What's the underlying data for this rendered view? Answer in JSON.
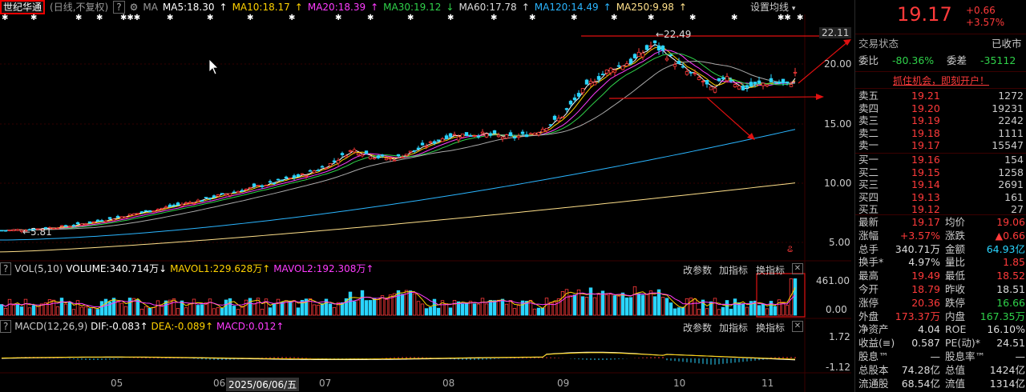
{
  "header": {
    "name": "世纪华通",
    "period": "(日线,不复权)",
    "help": "?",
    "ma_label": "MA",
    "ma5": "MA5:18.30",
    "ma10": "MA10:18.17",
    "ma20": "MA20:18.39",
    "ma30": "MA30:19.12",
    "ma60": "MA60:17.78",
    "ma120": "MA120:14.49",
    "ma250": "MA250:9.98",
    "settings": "设置均线",
    "colors": {
      "ma5": "#ffffff",
      "ma10": "#ffd200",
      "ma20": "#ff3cff",
      "ma30": "#2fd24a",
      "ma60": "#aaaaaa",
      "ma120": "#2ab5ff",
      "ma250": "#ffe08a"
    }
  },
  "price_axis": [
    "22.11",
    "20.00",
    "15.00",
    "10.00",
    "5.00"
  ],
  "annotations": {
    "high": "←22.49",
    "low": "←5.81"
  },
  "volume": {
    "title": "VOL(5,10)",
    "volume": "VOLUME:340.714万",
    "mavol1": "MAVOL1:229.628万",
    "mavol2": "MAVOL2:192.308万",
    "btn1": "改参数",
    "btn2": "加指标",
    "btn3": "换指标",
    "axis_top": "461.00",
    "axis_bottom": "0.00"
  },
  "macd": {
    "title": "MACD(12,26,9)",
    "dif": "DIF:-0.083",
    "dea": "DEA:-0.089",
    "macd": "MACD:0.012",
    "btn1": "改参数",
    "btn2": "加指标",
    "btn3": "换指标",
    "axis_top": "1.72",
    "axis_bottom": "-1.12"
  },
  "x_axis": [
    "05",
    "06",
    "2025/06/06/五",
    "07",
    "08",
    "09",
    "10",
    "11"
  ],
  "quote": {
    "price": "19.17",
    "change": "+0.66",
    "change_pct": "+3.57%",
    "status_label": "交易状态",
    "status_value": "已收市",
    "weibi_label": "委比",
    "weibi_value": "-80.36%",
    "weicha_label": "委差",
    "weicha_value": "-35112",
    "promo": "抓住机会，即刻开户！"
  },
  "asks": [
    {
      "label": "卖五",
      "price": "19.21",
      "vol": "1272"
    },
    {
      "label": "卖四",
      "price": "19.20",
      "vol": "19231"
    },
    {
      "label": "卖三",
      "price": "19.19",
      "vol": "2242"
    },
    {
      "label": "卖二",
      "price": "19.18",
      "vol": "1111"
    },
    {
      "label": "卖一",
      "price": "19.17",
      "vol": "15547"
    }
  ],
  "bids": [
    {
      "label": "买一",
      "price": "19.16",
      "vol": "154"
    },
    {
      "label": "买二",
      "price": "19.15",
      "vol": "1258"
    },
    {
      "label": "买三",
      "price": "19.14",
      "vol": "2691"
    },
    {
      "label": "买四",
      "price": "19.13",
      "vol": "161"
    },
    {
      "label": "买五",
      "price": "19.12",
      "vol": "27"
    }
  ],
  "stats": [
    {
      "l1": "最新",
      "v1": "19.17",
      "c1": "red",
      "l2": "均价",
      "v2": "19.06",
      "c2": "red"
    },
    {
      "l1": "涨幅",
      "v1": "+3.57%",
      "c1": "red",
      "l2": "涨跌",
      "v2": "▲0.66",
      "c2": "red"
    },
    {
      "l1": "总手",
      "v1": "340.71万",
      "c1": "white",
      "l2": "金额",
      "v2": "64.93亿",
      "c2": "cyan"
    },
    {
      "l1": "换手*",
      "v1": "4.97%",
      "c1": "white",
      "l2": "量比",
      "v2": "1.85",
      "c2": "red"
    },
    {
      "l1": "最高",
      "v1": "19.49",
      "c1": "red",
      "l2": "最低",
      "v2": "18.52",
      "c2": "red"
    },
    {
      "l1": "今开",
      "v1": "18.79",
      "c1": "red",
      "l2": "昨收",
      "v2": "18.51",
      "c2": "white"
    },
    {
      "l1": "涨停",
      "v1": "20.36",
      "c1": "red",
      "l2": "跌停",
      "v2": "16.66",
      "c2": "green"
    },
    {
      "l1": "外盘",
      "v1": "173.37万",
      "c1": "red",
      "l2": "内盘",
      "v2": "167.35万",
      "c2": "green"
    },
    {
      "l1": "净资产",
      "v1": "4.04",
      "c1": "white",
      "l2": "ROE",
      "v2": "16.10%",
      "c2": "white"
    },
    {
      "l1": "收益(≡)",
      "v1": "0.587",
      "c1": "white",
      "l2": "PE(动)*",
      "v2": "24.51",
      "c2": "white"
    },
    {
      "l1": "股息™",
      "v1": "—",
      "c1": "white",
      "l2": "股息率™",
      "v2": "—",
      "c2": "white"
    },
    {
      "l1": "总股本",
      "v1": "74.28亿",
      "c1": "white",
      "l2": "总值",
      "v2": "1424亿",
      "c2": "white"
    },
    {
      "l1": "流通股",
      "v1": "68.54亿",
      "c1": "white",
      "l2": "流值",
      "v2": "1314亿",
      "c2": "white"
    }
  ]
}
